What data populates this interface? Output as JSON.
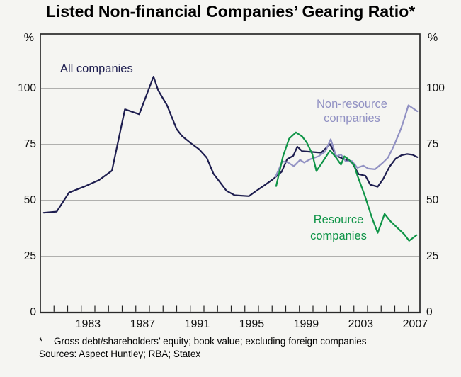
{
  "title": "Listed Non-financial Companies’ Gearing Ratio*",
  "axes": {
    "y_unit_left": "%",
    "y_unit_right": "%",
    "y_ticks": [
      0,
      25,
      50,
      75,
      100
    ],
    "x_labels": [
      "1983",
      "1987",
      "1991",
      "1995",
      "1999",
      "2003",
      "2007"
    ],
    "x_label_years": [
      1983,
      1987,
      1991,
      1995,
      1999,
      2003,
      2007
    ],
    "minor_tick_years": [
      1981,
      2007
    ]
  },
  "series_labels": {
    "all": "All companies",
    "non_resource": [
      "Non-resource",
      "companies"
    ],
    "resource": [
      "Resource",
      "companies"
    ]
  },
  "footnote": {
    "marker": "*",
    "text": "Gross debt/shareholders’ equity; book value; excluding foreign companies"
  },
  "sources": "Sources: Aspect Huntley; RBA; Statex",
  "colors": {
    "background": "#f5f5f2",
    "grid": "#b0b0ae",
    "frame": "#2a2a2a",
    "tick": "#222222",
    "all_companies": "#1d1d4f",
    "non_resource": "#9191c3",
    "resource": "#0f9447"
  },
  "chart_data": {
    "type": "line",
    "title": "Listed Non-financial Companies’ Gearing Ratio",
    "ylabel": "%",
    "xlabel": "",
    "x_range_years": [
      1980,
      2007.85
    ],
    "y_range_displayed": [
      0,
      124
    ],
    "gridlines": [
      25,
      50,
      75,
      100
    ],
    "grid_on": true,
    "legend_position": "inline-labels",
    "series": [
      {
        "name": "All companies",
        "color": "#1d1d4f",
        "points": [
          [
            1980.25,
            44.4
          ],
          [
            1981.2,
            44.9
          ],
          [
            1982.1,
            53.4
          ],
          [
            1983.35,
            56.4
          ],
          [
            1984.3,
            59.0
          ],
          [
            1985.25,
            63.2
          ],
          [
            1986.2,
            90.6
          ],
          [
            1987.25,
            88.4
          ],
          [
            1988.3,
            105.2
          ],
          [
            1988.65,
            99.0
          ],
          [
            1989.3,
            92.3
          ],
          [
            1990.0,
            81.7
          ],
          [
            1990.4,
            78.6
          ],
          [
            1991.05,
            75.4
          ],
          [
            1991.65,
            72.7
          ],
          [
            1992.2,
            69.0
          ],
          [
            1992.7,
            61.8
          ],
          [
            1993.65,
            54.2
          ],
          [
            1994.25,
            52.2
          ],
          [
            1995.3,
            51.8
          ],
          [
            1995.8,
            54.0
          ],
          [
            1996.5,
            56.9
          ],
          [
            1997.05,
            59.3
          ],
          [
            1997.7,
            62.7
          ],
          [
            1998.1,
            68.3
          ],
          [
            1998.55,
            69.8
          ],
          [
            1998.85,
            73.9
          ],
          [
            1999.2,
            71.9
          ],
          [
            2000.05,
            71.5
          ],
          [
            2000.6,
            71.2
          ],
          [
            2001.25,
            75.0
          ],
          [
            2001.7,
            69.8
          ],
          [
            2002.3,
            68.3
          ],
          [
            2002.85,
            66.9
          ],
          [
            2003.35,
            61.6
          ],
          [
            2003.85,
            60.9
          ],
          [
            2004.2,
            56.9
          ],
          [
            2004.75,
            56.0
          ],
          [
            2005.15,
            59.5
          ],
          [
            2005.6,
            64.8
          ],
          [
            2006.05,
            68.5
          ],
          [
            2006.5,
            70.1
          ],
          [
            2006.9,
            70.6
          ],
          [
            2007.3,
            70.3
          ],
          [
            2007.65,
            69.2
          ]
        ]
      },
      {
        "name": "Non-resource companies",
        "color": "#9191c3",
        "points": [
          [
            1997.25,
            60.5
          ],
          [
            1997.75,
            67.3
          ],
          [
            1998.15,
            66.9
          ],
          [
            1998.6,
            65.2
          ],
          [
            1999.05,
            68.0
          ],
          [
            1999.35,
            66.8
          ],
          [
            1999.8,
            68.3
          ],
          [
            2000.4,
            69.6
          ],
          [
            2000.9,
            71.7
          ],
          [
            2001.3,
            77.2
          ],
          [
            2001.7,
            69.6
          ],
          [
            2002.05,
            70.4
          ],
          [
            2002.4,
            67.3
          ],
          [
            2002.85,
            67.5
          ],
          [
            2003.25,
            64.5
          ],
          [
            2003.7,
            65.4
          ],
          [
            2004.05,
            64.1
          ],
          [
            2004.55,
            63.8
          ],
          [
            2005.1,
            66.6
          ],
          [
            2005.5,
            69.0
          ],
          [
            2005.95,
            74.5
          ],
          [
            2006.45,
            81.9
          ],
          [
            2006.75,
            87.3
          ],
          [
            2007.0,
            92.4
          ],
          [
            2007.65,
            89.7
          ]
        ]
      },
      {
        "name": "Resource companies",
        "color": "#0f9447",
        "points": [
          [
            1997.3,
            56.3
          ],
          [
            1997.8,
            69.6
          ],
          [
            1998.25,
            77.5
          ],
          [
            1998.75,
            80.3
          ],
          [
            1999.2,
            78.5
          ],
          [
            1999.55,
            75.7
          ],
          [
            1999.95,
            70.6
          ],
          [
            2000.25,
            63.0
          ],
          [
            2000.75,
            67.5
          ],
          [
            2001.25,
            72.2
          ],
          [
            2001.7,
            69.0
          ],
          [
            2002.05,
            65.9
          ],
          [
            2002.3,
            69.6
          ],
          [
            2002.55,
            68.5
          ],
          [
            2003.0,
            65.9
          ],
          [
            2003.25,
            61.1
          ],
          [
            2003.8,
            52.1
          ],
          [
            2004.3,
            42.6
          ],
          [
            2004.75,
            35.4
          ],
          [
            2005.25,
            43.9
          ],
          [
            2005.7,
            40.5
          ],
          [
            2006.2,
            37.6
          ],
          [
            2006.7,
            34.7
          ],
          [
            2007.05,
            31.9
          ],
          [
            2007.6,
            34.4
          ]
        ]
      }
    ]
  }
}
